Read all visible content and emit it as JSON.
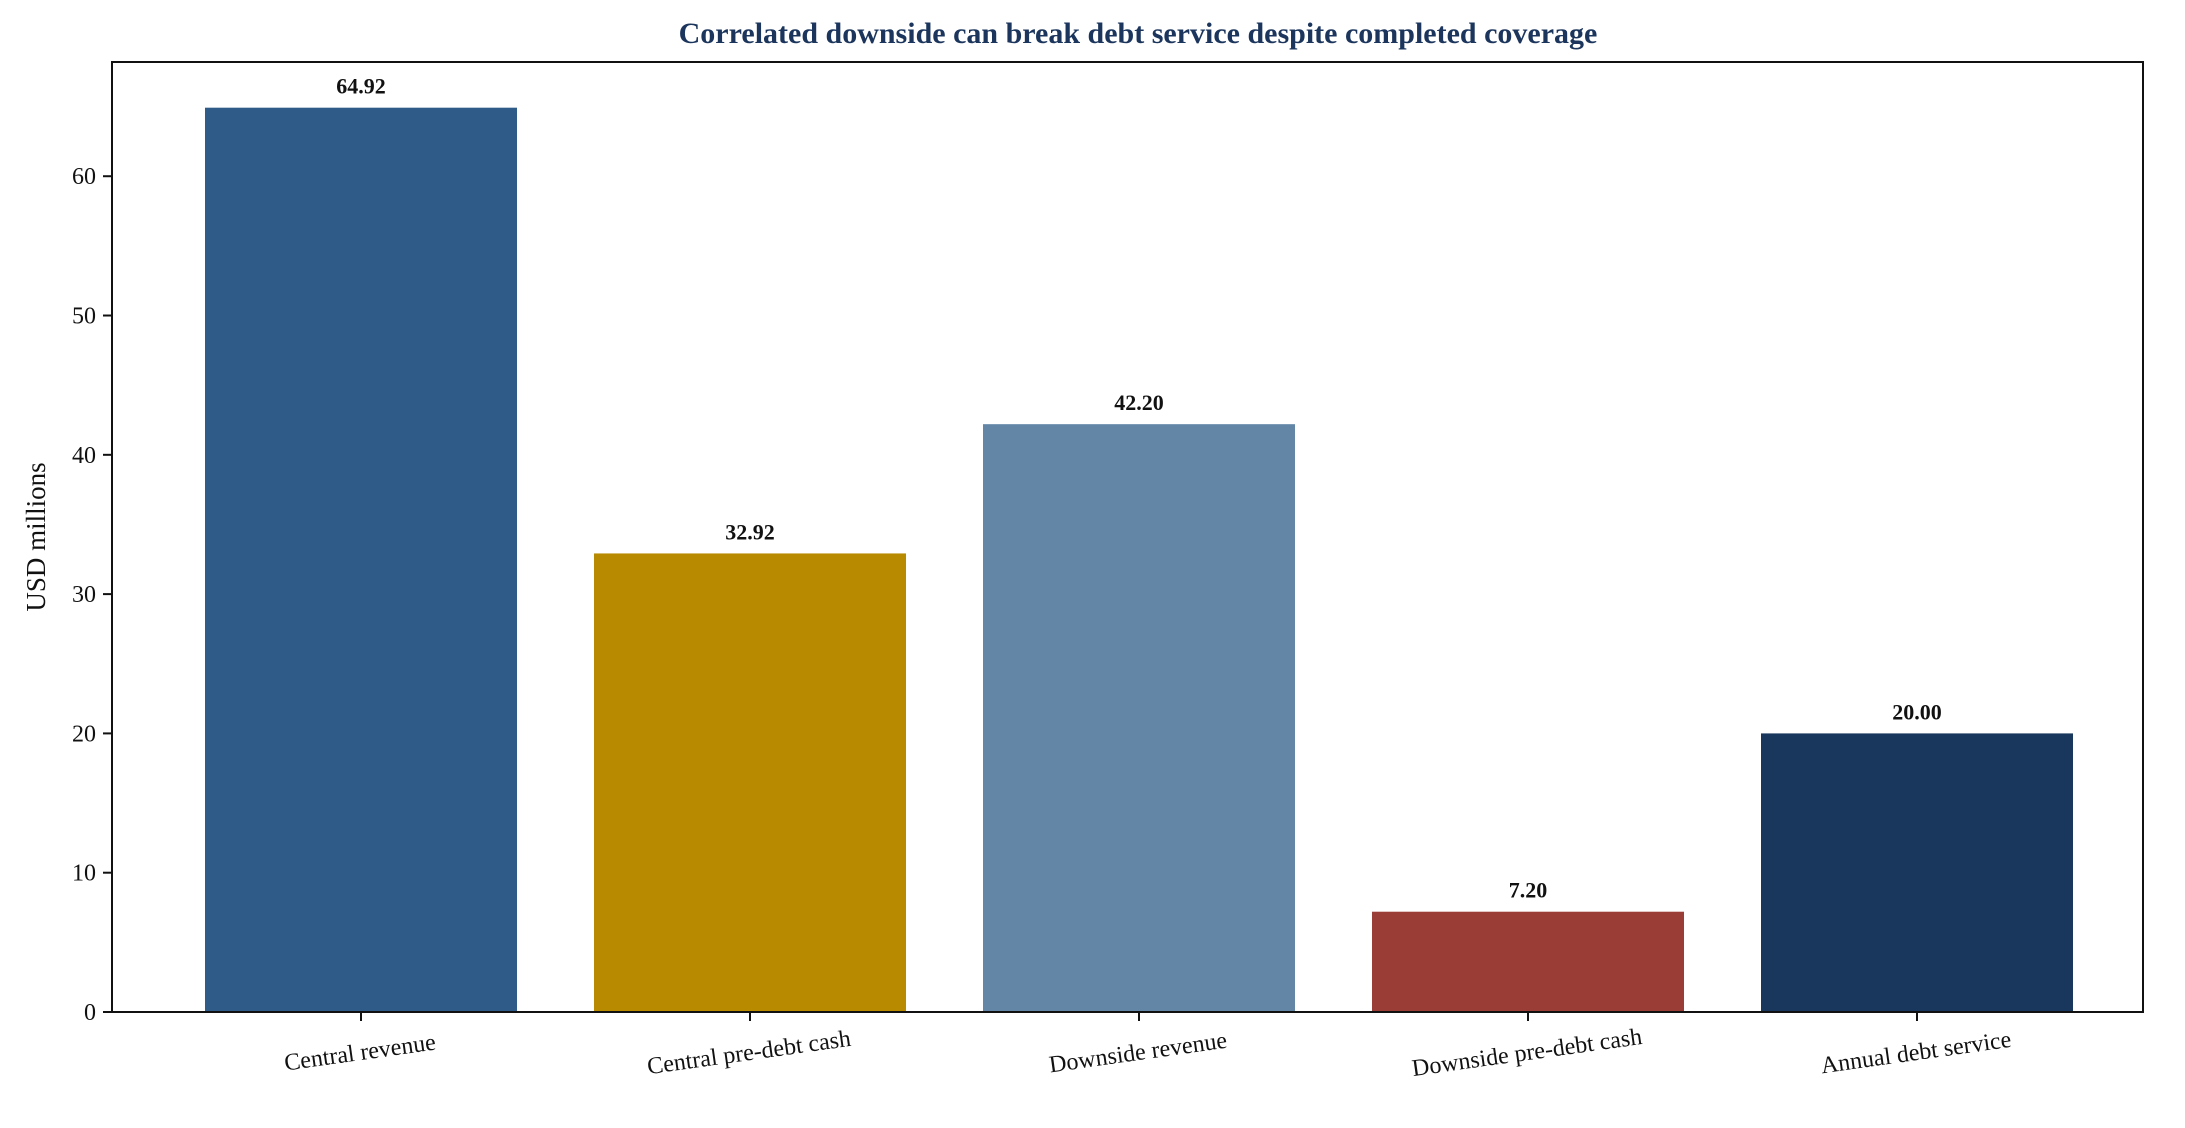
{
  "chart_data": {
    "type": "bar",
    "title": "Correlated downside can break debt service despite completed coverage",
    "xlabel": "",
    "ylabel": "USD millions",
    "ylim": [
      0,
      68.2
    ],
    "yticks": [
      0,
      10,
      20,
      30,
      40,
      50,
      60
    ],
    "grid": false,
    "categories": [
      "Central revenue",
      "Central pre-debt cash",
      "Downside revenue",
      "Downside pre-debt cash",
      "Annual debt service"
    ],
    "values": [
      64.92,
      32.92,
      42.2,
      7.2,
      20.0
    ],
    "value_labels": [
      "64.92",
      "32.92",
      "42.20",
      "7.20",
      "20.00"
    ],
    "colors": [
      "#2e5b87",
      "#b88a00",
      "#6386a7",
      "#9a3d36",
      "#19365c"
    ],
    "title_color": "#1b355c"
  }
}
